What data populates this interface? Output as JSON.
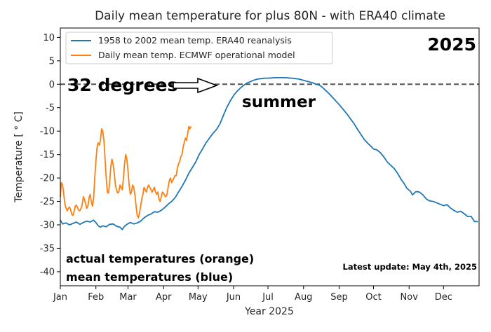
{
  "chart_data": {
    "type": "line",
    "title": "Daily mean temperature for plus 80N - with ERA40 climate",
    "xlabel": "Year 2025",
    "ylabel": "Temperature [ ° C]",
    "xlim": [
      0,
      365
    ],
    "ylim": [
      -43,
      12
    ],
    "yticks": [
      10,
      5,
      0,
      -5,
      -10,
      -15,
      -20,
      -25,
      -30,
      -35,
      -40
    ],
    "xticks": [
      {
        "day": 0,
        "label": "Jan"
      },
      {
        "day": 31,
        "label": "Feb"
      },
      {
        "day": 59,
        "label": "Mar"
      },
      {
        "day": 90,
        "label": "Apr"
      },
      {
        "day": 120,
        "label": "May"
      },
      {
        "day": 151,
        "label": "Jun"
      },
      {
        "day": 181,
        "label": "Jul"
      },
      {
        "day": 212,
        "label": "Aug"
      },
      {
        "day": 243,
        "label": "Sep"
      },
      {
        "day": 273,
        "label": "Oct"
      },
      {
        "day": 304,
        "label": "Nov"
      },
      {
        "day": 334,
        "label": "Dec"
      }
    ],
    "reference_line": {
      "y": 0,
      "style": "dashed",
      "color": "#555555"
    },
    "legend_position": "top-left",
    "series": [
      {
        "name": "1958 to 2002 mean temp. ERA40 reanalysis",
        "color": "#1f77b4",
        "points": [
          [
            0,
            -29.0
          ],
          [
            2,
            -29.8
          ],
          [
            5,
            -29.6
          ],
          [
            8,
            -30.0
          ],
          [
            11,
            -29.7
          ],
          [
            14,
            -29.4
          ],
          [
            17,
            -29.9
          ],
          [
            20,
            -29.5
          ],
          [
            23,
            -29.2
          ],
          [
            26,
            -29.4
          ],
          [
            29,
            -29.0
          ],
          [
            31,
            -29.5
          ],
          [
            33,
            -30.2
          ],
          [
            35,
            -30.5
          ],
          [
            37,
            -30.2
          ],
          [
            40,
            -30.4
          ],
          [
            43,
            -29.9
          ],
          [
            46,
            -29.8
          ],
          [
            49,
            -30.3
          ],
          [
            52,
            -30.5
          ],
          [
            54,
            -31.0
          ],
          [
            56,
            -30.3
          ],
          [
            58,
            -29.9
          ],
          [
            61,
            -29.5
          ],
          [
            64,
            -29.8
          ],
          [
            67,
            -29.6
          ],
          [
            70,
            -29.2
          ],
          [
            73,
            -28.5
          ],
          [
            76,
            -28.0
          ],
          [
            79,
            -27.7
          ],
          [
            82,
            -27.2
          ],
          [
            85,
            -27.3
          ],
          [
            88,
            -26.9
          ],
          [
            91,
            -26.3
          ],
          [
            94,
            -25.6
          ],
          [
            97,
            -25.0
          ],
          [
            100,
            -24.2
          ],
          [
            103,
            -23.0
          ],
          [
            106,
            -21.8
          ],
          [
            109,
            -20.5
          ],
          [
            112,
            -19.0
          ],
          [
            115,
            -17.8
          ],
          [
            118,
            -16.6
          ],
          [
            121,
            -15.0
          ],
          [
            124,
            -13.8
          ],
          [
            127,
            -12.5
          ],
          [
            130,
            -11.5
          ],
          [
            133,
            -10.5
          ],
          [
            136,
            -9.7
          ],
          [
            139,
            -8.5
          ],
          [
            142,
            -6.7
          ],
          [
            145,
            -5.0
          ],
          [
            148,
            -3.6
          ],
          [
            151,
            -2.4
          ],
          [
            154,
            -1.5
          ],
          [
            157,
            -0.8
          ],
          [
            160,
            -0.2
          ],
          [
            163,
            0.3
          ],
          [
            166,
            0.6
          ],
          [
            169,
            0.9
          ],
          [
            172,
            1.1
          ],
          [
            175,
            1.2
          ],
          [
            178,
            1.3
          ],
          [
            181,
            1.3
          ],
          [
            184,
            1.35
          ],
          [
            187,
            1.4
          ],
          [
            190,
            1.4
          ],
          [
            193,
            1.4
          ],
          [
            196,
            1.4
          ],
          [
            199,
            1.35
          ],
          [
            202,
            1.3
          ],
          [
            205,
            1.2
          ],
          [
            208,
            1.1
          ],
          [
            211,
            0.9
          ],
          [
            214,
            0.7
          ],
          [
            217,
            0.5
          ],
          [
            220,
            0.3
          ],
          [
            223,
            0.0
          ],
          [
            226,
            -0.2
          ],
          [
            229,
            -0.8
          ],
          [
            232,
            -1.5
          ],
          [
            235,
            -2.2
          ],
          [
            238,
            -3.0
          ],
          [
            241,
            -3.8
          ],
          [
            244,
            -4.6
          ],
          [
            247,
            -5.5
          ],
          [
            250,
            -6.4
          ],
          [
            253,
            -7.4
          ],
          [
            256,
            -8.4
          ],
          [
            259,
            -9.6
          ],
          [
            262,
            -10.7
          ],
          [
            265,
            -11.8
          ],
          [
            268,
            -12.6
          ],
          [
            271,
            -13.3
          ],
          [
            273,
            -13.8
          ],
          [
            276,
            -14.0
          ],
          [
            279,
            -14.6
          ],
          [
            282,
            -15.5
          ],
          [
            285,
            -16.6
          ],
          [
            288,
            -17.3
          ],
          [
            291,
            -18.0
          ],
          [
            294,
            -19.0
          ],
          [
            297,
            -20.3
          ],
          [
            300,
            -21.3
          ],
          [
            302,
            -22.2
          ],
          [
            305,
            -22.8
          ],
          [
            307,
            -23.6
          ],
          [
            310,
            -22.9
          ],
          [
            313,
            -23.0
          ],
          [
            316,
            -23.6
          ],
          [
            319,
            -24.5
          ],
          [
            322,
            -24.9
          ],
          [
            325,
            -25.0
          ],
          [
            328,
            -25.3
          ],
          [
            331,
            -25.6
          ],
          [
            334,
            -25.9
          ],
          [
            337,
            -25.7
          ],
          [
            340,
            -26.4
          ],
          [
            343,
            -26.9
          ],
          [
            346,
            -27.3
          ],
          [
            349,
            -27.1
          ],
          [
            352,
            -27.6
          ],
          [
            355,
            -28.2
          ],
          [
            358,
            -28.2
          ],
          [
            361,
            -29.3
          ],
          [
            364,
            -29.3
          ]
        ]
      },
      {
        "name": "Daily mean temp. ECMWF operational model",
        "color": "#ff7f0e",
        "points": [
          [
            0,
            -24.0
          ],
          [
            1,
            -21.0
          ],
          [
            2,
            -21.5
          ],
          [
            3,
            -23.5
          ],
          [
            4,
            -25.5
          ],
          [
            5,
            -26.5
          ],
          [
            6,
            -27.0
          ],
          [
            7,
            -26.5
          ],
          [
            8,
            -26.2
          ],
          [
            9,
            -26.8
          ],
          [
            10,
            -27.8
          ],
          [
            11,
            -28.0
          ],
          [
            12,
            -27.2
          ],
          [
            13,
            -26.0
          ],
          [
            14,
            -25.8
          ],
          [
            15,
            -26.3
          ],
          [
            16,
            -26.9
          ],
          [
            17,
            -27.0
          ],
          [
            18,
            -26.5
          ],
          [
            19,
            -25.8
          ],
          [
            20,
            -24.0
          ],
          [
            21,
            -24.5
          ],
          [
            22,
            -25.4
          ],
          [
            23,
            -26.5
          ],
          [
            24,
            -26.0
          ],
          [
            25,
            -24.3
          ],
          [
            26,
            -23.5
          ],
          [
            27,
            -25.0
          ],
          [
            28,
            -26.0
          ],
          [
            29,
            -24.5
          ],
          [
            30,
            -20.0
          ],
          [
            31,
            -16.5
          ],
          [
            32,
            -13.5
          ],
          [
            33,
            -12.5
          ],
          [
            34,
            -13.0
          ],
          [
            35,
            -12.0
          ],
          [
            36,
            -9.5
          ],
          [
            37,
            -10.0
          ],
          [
            38,
            -12.0
          ],
          [
            39,
            -16.0
          ],
          [
            40,
            -20.0
          ],
          [
            41,
            -23.0
          ],
          [
            42,
            -23.2
          ],
          [
            43,
            -21.0
          ],
          [
            44,
            -17.5
          ],
          [
            45,
            -16.0
          ],
          [
            46,
            -17.0
          ],
          [
            47,
            -19.0
          ],
          [
            48,
            -21.5
          ],
          [
            49,
            -22.5
          ],
          [
            50,
            -23.2
          ],
          [
            51,
            -23.0
          ],
          [
            52,
            -21.5
          ],
          [
            53,
            -22.0
          ],
          [
            54,
            -22.5
          ],
          [
            55,
            -20.0
          ],
          [
            56,
            -17.0
          ],
          [
            57,
            -15.0
          ],
          [
            58,
            -16.0
          ],
          [
            59,
            -18.5
          ],
          [
            60,
            -21.5
          ],
          [
            61,
            -23.5
          ],
          [
            62,
            -23.0
          ],
          [
            63,
            -21.5
          ],
          [
            64,
            -22.0
          ],
          [
            65,
            -23.5
          ],
          [
            66,
            -26.0
          ],
          [
            67,
            -28.0
          ],
          [
            68,
            -28.5
          ],
          [
            69,
            -27.5
          ],
          [
            70,
            -26.0
          ],
          [
            71,
            -24.5
          ],
          [
            72,
            -23.5
          ],
          [
            73,
            -22.0
          ],
          [
            74,
            -22.5
          ],
          [
            75,
            -23.0
          ],
          [
            76,
            -22.0
          ],
          [
            77,
            -21.5
          ],
          [
            78,
            -22.0
          ],
          [
            79,
            -22.5
          ],
          [
            80,
            -23.0
          ],
          [
            81,
            -22.5
          ],
          [
            82,
            -22.0
          ],
          [
            83,
            -23.0
          ],
          [
            84,
            -23.5
          ],
          [
            85,
            -23.0
          ],
          [
            86,
            -24.5
          ],
          [
            87,
            -25.0
          ],
          [
            88,
            -24.0
          ],
          [
            89,
            -23.0
          ],
          [
            90,
            -23.2
          ],
          [
            91,
            -23.8
          ],
          [
            92,
            -24.0
          ],
          [
            93,
            -23.5
          ],
          [
            94,
            -22.0
          ],
          [
            95,
            -20.5
          ],
          [
            96,
            -20.0
          ],
          [
            97,
            -21.0
          ],
          [
            98,
            -20.5
          ],
          [
            99,
            -20.0
          ],
          [
            100,
            -19.5
          ],
          [
            101,
            -19.5
          ],
          [
            102,
            -18.0
          ],
          [
            103,
            -17.0
          ],
          [
            104,
            -16.5
          ],
          [
            105,
            -15.5
          ],
          [
            106,
            -15.0
          ],
          [
            107,
            -13.5
          ],
          [
            108,
            -12.5
          ],
          [
            109,
            -11.5
          ],
          [
            110,
            -12.0
          ],
          [
            111,
            -10.5
          ],
          [
            112,
            -9.0
          ],
          [
            113,
            -9.5
          ],
          [
            114,
            -9.0
          ]
        ]
      }
    ]
  },
  "annotations": {
    "year_label": "2025",
    "degrees_label": "32 degrees",
    "summer_label": "summer",
    "actual_label": "actual temperatures (orange)",
    "mean_label": "mean temperatures (blue)",
    "update_label": "Latest update: May 4th, 2025"
  }
}
